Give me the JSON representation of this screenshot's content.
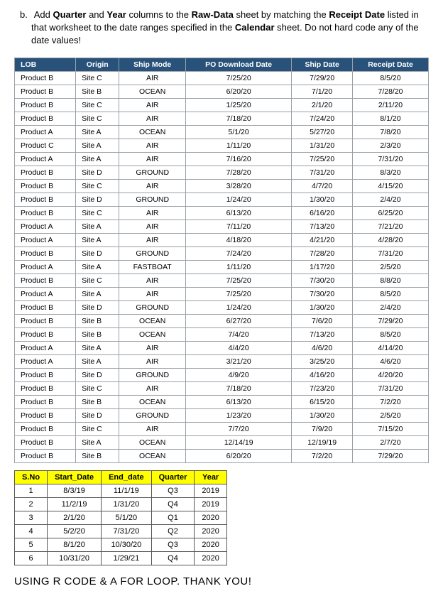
{
  "instruction": {
    "letter": "b.",
    "parts": [
      {
        "t": "Add "
      },
      {
        "t": "Quarter",
        "b": true
      },
      {
        "t": " and "
      },
      {
        "t": "Year",
        "b": true
      },
      {
        "t": " columns to the "
      },
      {
        "t": "Raw-Data",
        "b": true
      },
      {
        "t": " sheet by matching the "
      },
      {
        "t": "Receipt Date",
        "b": true
      },
      {
        "t": " listed in that worksheet to the date ranges specified in the "
      },
      {
        "t": "Calendar",
        "b": true
      },
      {
        "t": " sheet. Do not hard code any of the date values!"
      }
    ]
  },
  "table1": {
    "headers": [
      "LOB",
      "Origin",
      "Ship Mode",
      "PO Download Date",
      "Ship Date",
      "Receipt Date"
    ],
    "rows": [
      [
        "Product B",
        "Site C",
        "AIR",
        "7/25/20",
        "7/29/20",
        "8/5/20"
      ],
      [
        "Product B",
        "Site B",
        "OCEAN",
        "6/20/20",
        "7/1/20",
        "7/28/20"
      ],
      [
        "Product B",
        "Site C",
        "AIR",
        "1/25/20",
        "2/1/20",
        "2/11/20"
      ],
      [
        "Product B",
        "Site C",
        "AIR",
        "7/18/20",
        "7/24/20",
        "8/1/20"
      ],
      [
        "Product A",
        "Site A",
        "OCEAN",
        "5/1/20",
        "5/27/20",
        "7/8/20"
      ],
      [
        "Product C",
        "Site A",
        "AIR",
        "1/11/20",
        "1/31/20",
        "2/3/20"
      ],
      [
        "Product A",
        "Site A",
        "AIR",
        "7/16/20",
        "7/25/20",
        "7/31/20"
      ],
      [
        "Product B",
        "Site D",
        "GROUND",
        "7/28/20",
        "7/31/20",
        "8/3/20"
      ],
      [
        "Product B",
        "Site C",
        "AIR",
        "3/28/20",
        "4/7/20",
        "4/15/20"
      ],
      [
        "Product B",
        "Site D",
        "GROUND",
        "1/24/20",
        "1/30/20",
        "2/4/20"
      ],
      [
        "Product B",
        "Site C",
        "AIR",
        "6/13/20",
        "6/16/20",
        "6/25/20"
      ],
      [
        "Product A",
        "Site A",
        "AIR",
        "7/11/20",
        "7/13/20",
        "7/21/20"
      ],
      [
        "Product A",
        "Site A",
        "AIR",
        "4/18/20",
        "4/21/20",
        "4/28/20"
      ],
      [
        "Product B",
        "Site D",
        "GROUND",
        "7/24/20",
        "7/28/20",
        "7/31/20"
      ],
      [
        "Product A",
        "Site A",
        "FASTBOAT",
        "1/11/20",
        "1/17/20",
        "2/5/20"
      ],
      [
        "Product B",
        "Site C",
        "AIR",
        "7/25/20",
        "7/30/20",
        "8/8/20"
      ],
      [
        "Product A",
        "Site A",
        "AIR",
        "7/25/20",
        "7/30/20",
        "8/5/20"
      ],
      [
        "Product B",
        "Site D",
        "GROUND",
        "1/24/20",
        "1/30/20",
        "2/4/20"
      ],
      [
        "Product B",
        "Site B",
        "OCEAN",
        "6/27/20",
        "7/6/20",
        "7/29/20"
      ],
      [
        "Product B",
        "Site B",
        "OCEAN",
        "7/4/20",
        "7/13/20",
        "8/5/20"
      ],
      [
        "Product A",
        "Site A",
        "AIR",
        "4/4/20",
        "4/6/20",
        "4/14/20"
      ],
      [
        "Product A",
        "Site A",
        "AIR",
        "3/21/20",
        "3/25/20",
        "4/6/20"
      ],
      [
        "Product B",
        "Site D",
        "GROUND",
        "4/9/20",
        "4/16/20",
        "4/20/20"
      ],
      [
        "Product B",
        "Site C",
        "AIR",
        "7/18/20",
        "7/23/20",
        "7/31/20"
      ],
      [
        "Product B",
        "Site B",
        "OCEAN",
        "6/13/20",
        "6/15/20",
        "7/2/20"
      ],
      [
        "Product B",
        "Site D",
        "GROUND",
        "1/23/20",
        "1/30/20",
        "2/5/20"
      ],
      [
        "Product B",
        "Site C",
        "AIR",
        "7/7/20",
        "7/9/20",
        "7/15/20"
      ],
      [
        "Product B",
        "Site A",
        "OCEAN",
        "12/14/19",
        "12/19/19",
        "2/7/20"
      ],
      [
        "Product B",
        "Site B",
        "OCEAN",
        "6/20/20",
        "7/2/20",
        "7/29/20"
      ]
    ]
  },
  "table2": {
    "headers": [
      "S.No",
      "Start_Date",
      "End_date",
      "Quarter",
      "Year"
    ],
    "rows": [
      [
        "1",
        "8/3/19",
        "11/1/19",
        "Q3",
        "2019"
      ],
      [
        "2",
        "11/2/19",
        "1/31/20",
        "Q4",
        "2019"
      ],
      [
        "3",
        "2/1/20",
        "5/1/20",
        "Q1",
        "2020"
      ],
      [
        "4",
        "5/2/20",
        "7/31/20",
        "Q2",
        "2020"
      ],
      [
        "5",
        "8/1/20",
        "10/30/20",
        "Q3",
        "2020"
      ],
      [
        "6",
        "10/31/20",
        "1/29/21",
        "Q4",
        "2020"
      ]
    ]
  },
  "footer": "USING R CODE & A FOR LOOP. THANK YOU!"
}
